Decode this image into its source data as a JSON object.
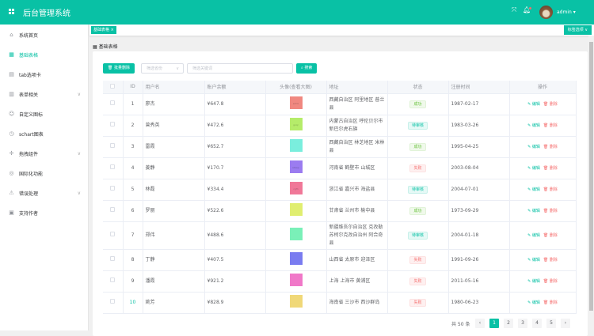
{
  "header": {
    "title": "后台管理系统",
    "user": "admin ▾",
    "icons": [
      "grid-icon",
      "fullscreen-icon",
      "bell-icon",
      "avatar"
    ]
  },
  "sidebar": {
    "items": [
      {
        "label": "系统首页",
        "icon": "⌂",
        "active": false,
        "chevron": false
      },
      {
        "label": "基础表格",
        "icon": "▦",
        "active": true,
        "chevron": false
      },
      {
        "label": "tab选项卡",
        "icon": "▤",
        "active": false,
        "chevron": false
      },
      {
        "label": "表单相关",
        "icon": "▥",
        "active": false,
        "chevron": true
      },
      {
        "label": "自定义图标",
        "icon": "☺",
        "active": false,
        "chevron": false
      },
      {
        "label": "schart图表",
        "icon": "◷",
        "active": false,
        "chevron": false
      },
      {
        "label": "拖拽组件",
        "icon": "✛",
        "active": false,
        "chevron": true
      },
      {
        "label": "国际化功能",
        "icon": "◎",
        "active": false,
        "chevron": false
      },
      {
        "label": "错误处理",
        "icon": "⚠",
        "active": false,
        "chevron": true
      },
      {
        "label": "支持作者",
        "icon": "▣",
        "active": false,
        "chevron": false
      }
    ]
  },
  "tabs": {
    "active": "基础表格 ×",
    "options": "标签选项 ∨"
  },
  "breadcrumb": "基础表格",
  "toolbar": {
    "batch_delete": "批量删除",
    "address_placeholder": "筛选省份",
    "keyword_placeholder": "筛选关键词",
    "search": "搜索"
  },
  "table": {
    "columns": [
      "",
      "ID",
      "用户名",
      "账户余额",
      "头像(查看大图)",
      "地址",
      "状态",
      "注册时间",
      "操作"
    ],
    "edit": "编辑",
    "delete": "删除",
    "rows": [
      {
        "id": "1",
        "name": "廖杰",
        "balance": "¥647.8",
        "avatar_color": "#f08880",
        "avatar_text": "ecDx",
        "address": "西藏自治区 阿里地区 普兰县",
        "status": "成功",
        "status_type": "ok",
        "date": "1987-02-17"
      },
      {
        "id": "2",
        "name": "曾秀英",
        "balance": "¥472.6",
        "avatar_color": "#b5ec6a",
        "avatar_text": "gxqr",
        "address": "内蒙古自治区 呼伦贝尔市 新巴尔虎右旗",
        "status": "待审核",
        "status_type": "wait",
        "date": "1983-03-26"
      },
      {
        "id": "3",
        "name": "雷霞",
        "balance": "¥652.7",
        "avatar_color": "#7aeedd",
        "avatar_text": "",
        "address": "西藏自治区 林芝地区 米林县",
        "status": "成功",
        "status_type": "ok",
        "date": "1995-04-25"
      },
      {
        "id": "4",
        "name": "姜静",
        "balance": "¥170.7",
        "avatar_color": "#9b7cf0",
        "avatar_text": "sfewp",
        "address": "河南省 鹤壁市 山城区",
        "status": "失败",
        "status_type": "fail",
        "date": "2003-08-04"
      },
      {
        "id": "5",
        "name": "林磊",
        "balance": "¥334.4",
        "avatar_color": "#f07898",
        "avatar_text": "cgfh",
        "address": "浙江省 嘉兴市 海盐县",
        "status": "待审核",
        "status_type": "wait",
        "date": "2004-07-01"
      },
      {
        "id": "6",
        "name": "罗丽",
        "balance": "¥522.6",
        "avatar_color": "#e0ee70",
        "avatar_text": "",
        "address": "甘肃省 兰州市 榆中县",
        "status": "成功",
        "status_type": "ok",
        "date": "1973-09-29"
      },
      {
        "id": "7",
        "name": "郑伟",
        "balance": "¥488.6",
        "avatar_color": "#7af0b8",
        "avatar_text": "",
        "address": "新疆维吾尔自治区 克孜勒苏柯尔克孜自治州 阿合奇县",
        "status": "待审核",
        "status_type": "wait",
        "date": "2004-01-18"
      },
      {
        "id": "8",
        "name": "丁静",
        "balance": "¥407.5",
        "avatar_color": "#7a7cf0",
        "avatar_text": "",
        "address": "山西省 太原市 迎泽区",
        "status": "失败",
        "status_type": "fail",
        "date": "1991-09-26"
      },
      {
        "id": "9",
        "name": "潘霞",
        "balance": "¥921.2",
        "avatar_color": "#f078c8",
        "avatar_text": "",
        "address": "上海 上海市 黄浦区",
        "status": "失败",
        "status_type": "fail",
        "date": "2011-05-16"
      },
      {
        "id": "10",
        "name": "姚芳",
        "balance": "¥828.9",
        "avatar_color": "#f0d878",
        "avatar_text": "",
        "address": "海南省 三沙市 西沙群岛",
        "status": "失败",
        "status_type": "fail",
        "date": "1980-06-23"
      }
    ]
  },
  "pagination": {
    "total": "共 50 条",
    "prev": "‹",
    "next": "›",
    "pages": [
      "1",
      "2",
      "3",
      "4",
      "5"
    ],
    "current": "1"
  },
  "colors": {
    "accent": "#09c1a5",
    "danger": "#f56c6c",
    "success": "#67c23a"
  }
}
